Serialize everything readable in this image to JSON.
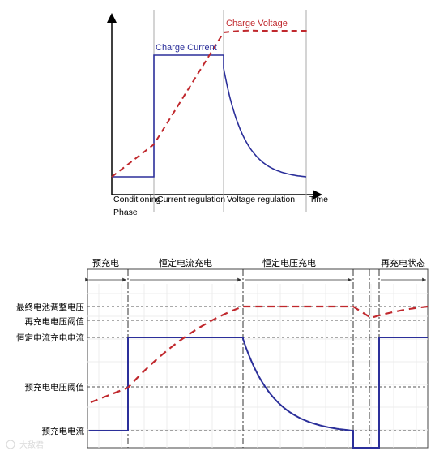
{
  "top_diagram": {
    "charge_voltage_label": "Charge Voltage",
    "charge_current_label": "Charge Current",
    "time_label": "Time",
    "phases": [
      "Conditioning",
      "Current regulation",
      "Voltage regulation"
    ],
    "phase_sub": "Phase",
    "current_color": "#2b2f9a",
    "voltage_color": "#c0282d"
  },
  "bottom_diagram": {
    "phases": [
      "预充电",
      "恒定电流充电",
      "恒定电压充电",
      "再充电状态"
    ],
    "levels": [
      "最终电池调整电压",
      "再充电电压阈值",
      "恒定电流充电电流",
      "预充电电压阈值",
      "预充电电流"
    ],
    "watermark_text": "大敌君",
    "current_color": "#2b2f9a",
    "voltage_color": "#c0282d"
  }
}
